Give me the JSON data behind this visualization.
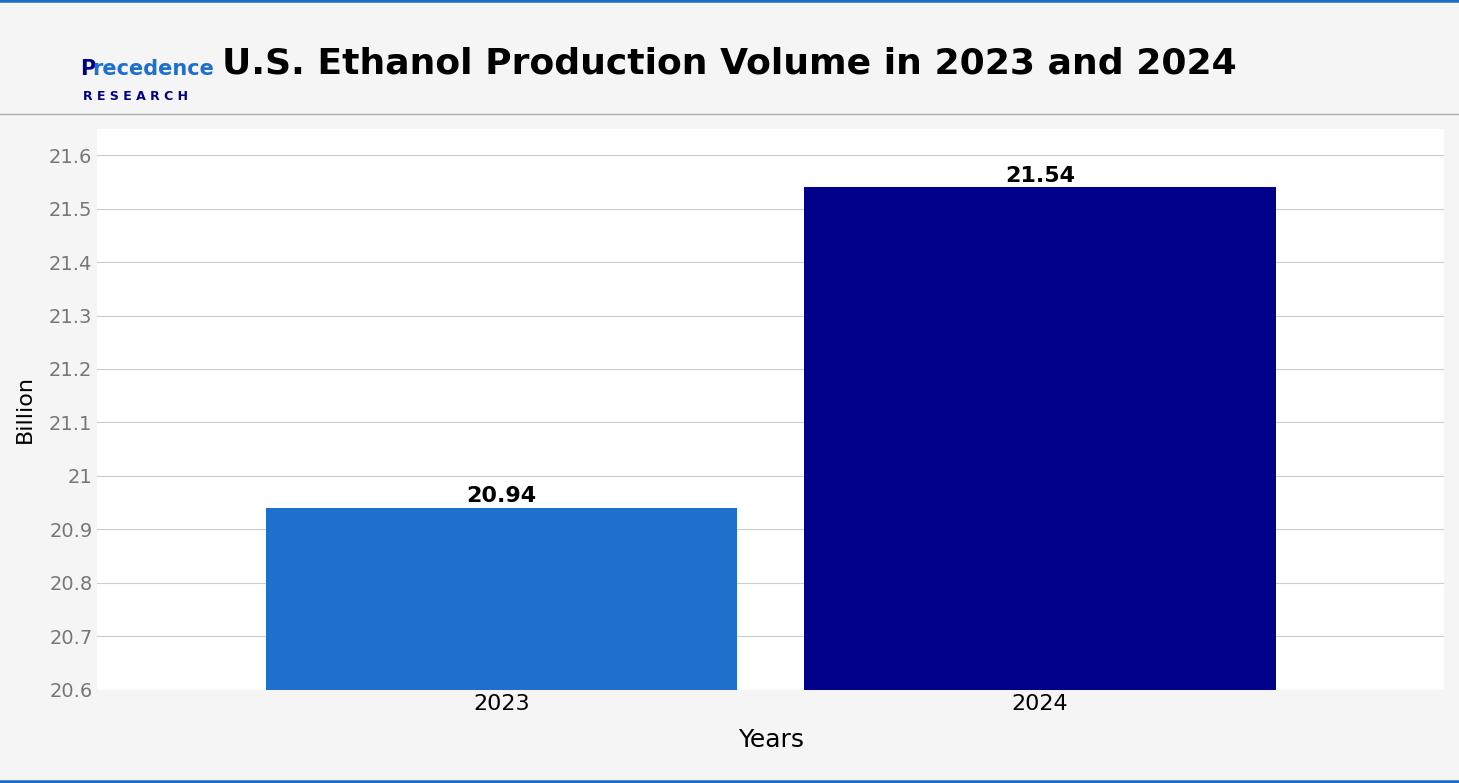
{
  "title": "U.S. Ethanol Production Volume in 2023 and 2024",
  "categories": [
    "2023",
    "2024"
  ],
  "values": [
    20.94,
    21.54
  ],
  "bar_colors": [
    "#1f6fcc",
    "#00008B"
  ],
  "ylabel": "Billion",
  "xlabel": "Years",
  "ylim": [
    20.6,
    21.65
  ],
  "yticks": [
    20.6,
    20.7,
    20.8,
    20.9,
    21.0,
    21.1,
    21.2,
    21.3,
    21.4,
    21.5,
    21.6
  ],
  "title_fontsize": 26,
  "axis_label_fontsize": 16,
  "tick_fontsize": 14,
  "value_label_fontsize": 16,
  "bar_width": 0.35,
  "background_color": "#f5f5f5",
  "plot_bg_color": "#ffffff",
  "grid_color": "#cccccc",
  "title_color": "#000000",
  "tick_color": "#777777",
  "border_top_color": "#1a6fc4",
  "border_bottom_color": "#1a6fc4",
  "separator_color": "#aaaaaa",
  "logo_blue": "#1f6fcc",
  "logo_dark": "#00008B"
}
